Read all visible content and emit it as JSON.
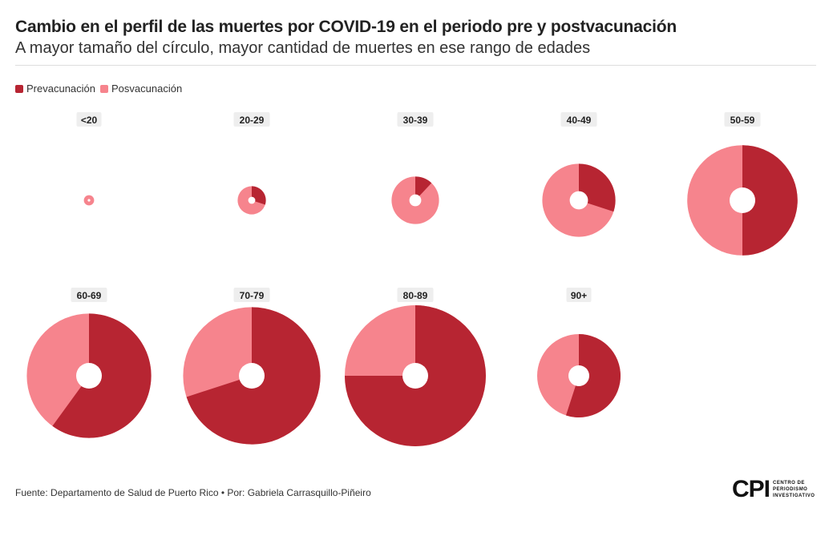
{
  "header": {
    "title": "Cambio en el perfil de las muertes por COVID-19 en el periodo pre y postvacunación",
    "subtitle": "A mayor tamaño del círculo, mayor cantidad de muertes en ese rango de edades"
  },
  "legend": {
    "pre_label": "Prevacunación",
    "post_label": "Posvacunación"
  },
  "colors": {
    "pre": "#b72532",
    "post": "#f6848d",
    "label_bg": "#eeeeee"
  },
  "chart_data": {
    "type": "pie",
    "variant": "donut",
    "size_encodes": "total deaths per age group (relative)",
    "series": [
      {
        "name": "Prevacunación"
      },
      {
        "name": "Posvacunación"
      }
    ],
    "categories": [
      "<20",
      "20-29",
      "30-39",
      "40-49",
      "50-59",
      "60-69",
      "70-79",
      "80-89",
      "90+"
    ],
    "pre_share": [
      0.0,
      0.3,
      0.12,
      0.3,
      0.5,
      0.6,
      0.7,
      0.75,
      0.55
    ],
    "post_share": [
      1.0,
      0.7,
      0.88,
      0.7,
      0.5,
      0.4,
      0.3,
      0.25,
      0.45
    ],
    "relative_size": [
      0.08,
      0.22,
      0.37,
      0.57,
      0.86,
      0.97,
      1.07,
      1.1,
      0.65
    ]
  },
  "footer": {
    "source": "Fuente: Departamento de Salud de Puerto Rico • Por: Gabriela Carrasquillo-Piñeiro",
    "logo_mark": "CPI",
    "logo_text": "CENTRO DE PERIODISMO INVESTIGATIVO"
  }
}
